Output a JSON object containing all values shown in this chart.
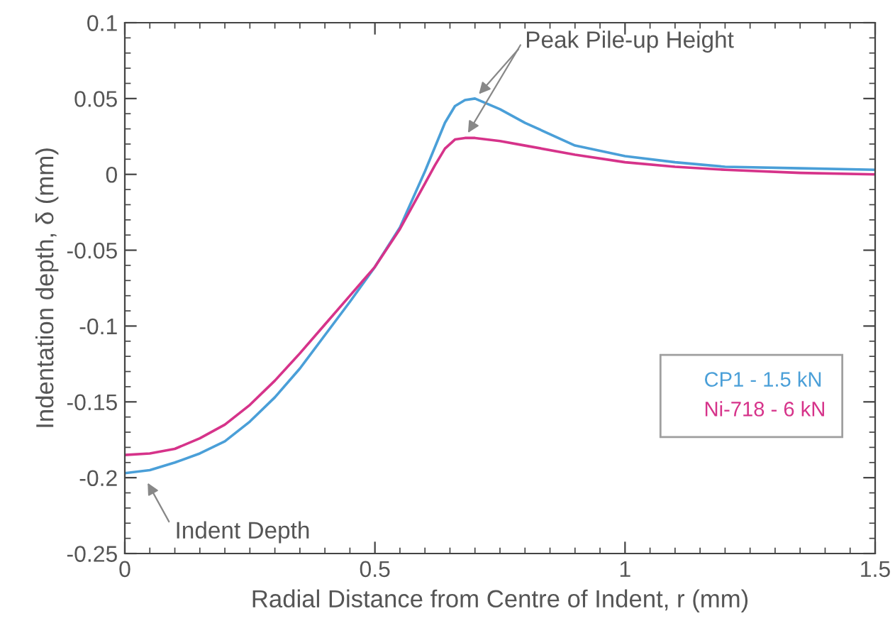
{
  "chart_data": {
    "type": "line",
    "xlabel": "Radial Distance from Centre of Indent, r (mm)",
    "ylabel": "Indentation depth, δ (mm)",
    "xlim": [
      0,
      1.5
    ],
    "xticks": [
      0,
      0.5,
      1,
      1.5
    ],
    "ylim": [
      -0.25,
      0.1
    ],
    "yticks": [
      -0.25,
      -0.2,
      -0.15,
      -0.1,
      -0.05,
      0,
      0.05,
      0.1
    ],
    "grid": false,
    "legend": "bottom right",
    "marker": "none",
    "line_style": "solid",
    "series": [
      {
        "name": "CP1 - 1.5 kN",
        "color": "#4a9fd8",
        "x": [
          0,
          0.05,
          0.1,
          0.15,
          0.2,
          0.25,
          0.3,
          0.35,
          0.4,
          0.45,
          0.5,
          0.55,
          0.6,
          0.62,
          0.64,
          0.66,
          0.68,
          0.7,
          0.75,
          0.8,
          0.9,
          1.0,
          1.1,
          1.2,
          1.35,
          1.5
        ],
        "values": [
          -0.197,
          -0.195,
          -0.19,
          -0.184,
          -0.176,
          -0.163,
          -0.147,
          -0.128,
          -0.106,
          -0.084,
          -0.061,
          -0.035,
          0.002,
          0.018,
          0.034,
          0.045,
          0.049,
          0.05,
          0.043,
          0.034,
          0.019,
          0.012,
          0.008,
          0.005,
          0.004,
          0.003
        ]
      },
      {
        "name": "Ni-718 - 6 kN",
        "color": "#d6338a",
        "x": [
          0,
          0.05,
          0.1,
          0.15,
          0.2,
          0.25,
          0.3,
          0.35,
          0.4,
          0.45,
          0.5,
          0.55,
          0.6,
          0.62,
          0.64,
          0.66,
          0.68,
          0.7,
          0.75,
          0.8,
          0.9,
          1.0,
          1.1,
          1.2,
          1.35,
          1.5
        ],
        "values": [
          -0.185,
          -0.184,
          -0.181,
          -0.174,
          -0.165,
          -0.152,
          -0.136,
          -0.118,
          -0.099,
          -0.08,
          -0.061,
          -0.036,
          -0.006,
          0.006,
          0.017,
          0.023,
          0.024,
          0.024,
          0.022,
          0.019,
          0.013,
          0.008,
          0.005,
          0.003,
          0.001,
          0
        ]
      }
    ],
    "annotations": [
      {
        "text": "Peak Pile-up Height",
        "x": 0.7,
        "y": 0.05
      },
      {
        "text": "Indent Depth",
        "x": 0.04,
        "y": -0.2
      }
    ]
  }
}
